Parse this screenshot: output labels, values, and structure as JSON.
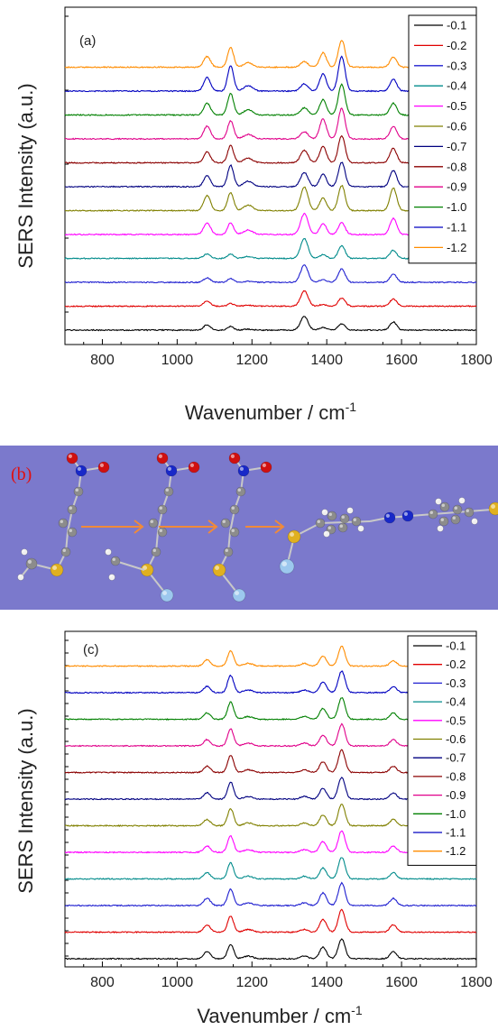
{
  "chart_data": [
    {
      "type": "line",
      "panel_label": "(a)",
      "xlabel": "Wavenumber / cm",
      "xlabel_sup": "-1",
      "ylabel": "SERS Intensity (a.u.)",
      "xlim": [
        700,
        1800
      ],
      "xticks": [
        800,
        1000,
        1200,
        1400,
        1600,
        1800
      ],
      "peaks": [
        1080,
        1143,
        1190,
        1340,
        1390,
        1440,
        1578
      ],
      "series": [
        {
          "name": "-0.1",
          "color": "#000000",
          "peak_heights": [
            6,
            4,
            1,
            15,
            3,
            7,
            9
          ]
        },
        {
          "name": "-0.2",
          "color": "#e00000",
          "peak_heights": [
            6,
            3,
            1,
            17,
            2,
            9,
            8
          ]
        },
        {
          "name": "-0.3",
          "color": "#1f1fd0",
          "peak_heights": [
            5,
            4,
            1,
            19,
            3,
            15,
            9
          ]
        },
        {
          "name": "-0.4",
          "color": "#008b8b",
          "peak_heights": [
            5,
            5,
            2,
            22,
            4,
            14,
            9
          ]
        },
        {
          "name": "-0.5",
          "color": "#ff00ff",
          "peak_heights": [
            13,
            13,
            5,
            23,
            12,
            13,
            18
          ]
        },
        {
          "name": "-0.6",
          "color": "#808000",
          "peak_heights": [
            17,
            20,
            6,
            26,
            14,
            28,
            25
          ]
        },
        {
          "name": "-0.7",
          "color": "#000080",
          "peak_heights": [
            12,
            24,
            6,
            16,
            14,
            27,
            18
          ]
        },
        {
          "name": "-0.8",
          "color": "#8b0000",
          "peak_heights": [
            12,
            19,
            5,
            14,
            18,
            30,
            16
          ]
        },
        {
          "name": "-0.9",
          "color": "#e0008a",
          "peak_heights": [
            14,
            20,
            5,
            8,
            22,
            34,
            14
          ]
        },
        {
          "name": "-1.0",
          "color": "#008000",
          "peak_heights": [
            13,
            24,
            6,
            8,
            17,
            34,
            13
          ]
        },
        {
          "name": "-1.1",
          "color": "#0000c0",
          "peak_heights": [
            15,
            28,
            6,
            8,
            19,
            38,
            13
          ]
        },
        {
          "name": "-1.2",
          "color": "#ff8c00",
          "peak_heights": [
            12,
            22,
            5,
            6,
            16,
            30,
            11
          ]
        }
      ]
    },
    {
      "type": "line",
      "panel_label": "(c)",
      "xlabel": "Vavenumber / cm",
      "xlabel_sup": "-1",
      "ylabel": "SERS Intensity (a.u.)",
      "xlim": [
        700,
        1800
      ],
      "xticks": [
        800,
        1000,
        1200,
        1400,
        1600,
        1800
      ],
      "peaks": [
        1080,
        1143,
        1190,
        1340,
        1390,
        1440,
        1578
      ],
      "series": [
        {
          "name": "-0.1",
          "color": "#000000",
          "peak_heights": [
            8,
            16,
            3,
            3,
            13,
            22,
            8
          ]
        },
        {
          "name": "-0.2",
          "color": "#e00000",
          "peak_heights": [
            8,
            18,
            3,
            3,
            14,
            25,
            8
          ]
        },
        {
          "name": "-0.3",
          "color": "#1f1fd0",
          "peak_heights": [
            8,
            18,
            3,
            3,
            14,
            25,
            8
          ]
        },
        {
          "name": "-0.4",
          "color": "#008b8b",
          "peak_heights": [
            7,
            18,
            3,
            3,
            12,
            24,
            7
          ]
        },
        {
          "name": "-0.5",
          "color": "#ff00ff",
          "peak_heights": [
            7,
            18,
            3,
            3,
            12,
            24,
            7
          ]
        },
        {
          "name": "-0.6",
          "color": "#808000",
          "peak_heights": [
            7,
            19,
            3,
            3,
            12,
            24,
            7
          ]
        },
        {
          "name": "-0.7",
          "color": "#000080",
          "peak_heights": [
            7,
            19,
            3,
            3,
            12,
            24,
            7
          ]
        },
        {
          "name": "-0.8",
          "color": "#8b0000",
          "peak_heights": [
            7,
            19,
            3,
            3,
            12,
            25,
            7
          ]
        },
        {
          "name": "-0.9",
          "color": "#e0008a",
          "peak_heights": [
            7,
            19,
            3,
            3,
            12,
            24,
            7
          ]
        },
        {
          "name": "-1.0",
          "color": "#008000",
          "peak_heights": [
            7,
            19,
            3,
            3,
            12,
            24,
            7
          ]
        },
        {
          "name": "-1.1",
          "color": "#0000c0",
          "peak_heights": [
            7,
            19,
            3,
            3,
            12,
            24,
            7
          ]
        },
        {
          "name": "-1.2",
          "color": "#ff8c00",
          "peak_heights": [
            7,
            17,
            3,
            3,
            11,
            22,
            6
          ]
        }
      ]
    }
  ],
  "panel_b": {
    "label": "(b)",
    "background": "#7b79cc"
  }
}
